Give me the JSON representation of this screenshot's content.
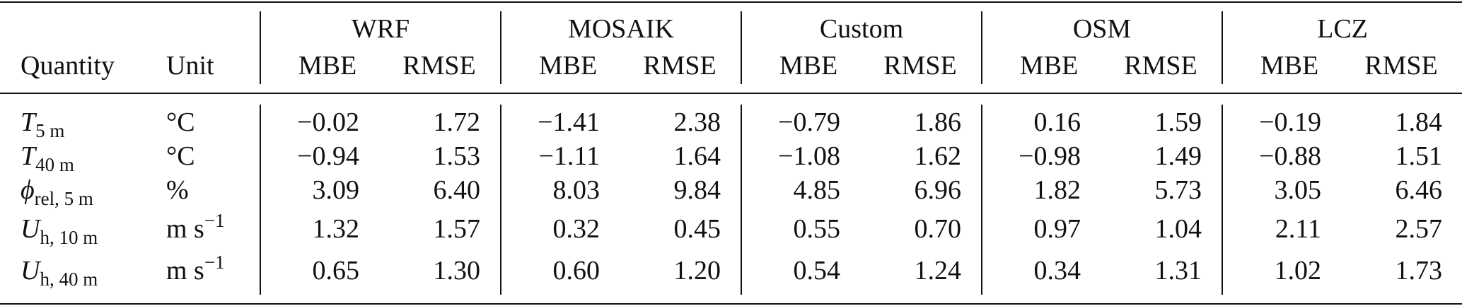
{
  "table": {
    "columns": [
      "Quantity",
      "Unit"
    ],
    "groups": [
      "WRF",
      "MOSAIK",
      "Custom",
      "OSM",
      "LCZ"
    ],
    "metrics": [
      "MBE",
      "RMSE"
    ],
    "rows": [
      {
        "quantity": {
          "symbol": "T",
          "subscript": "5 m"
        },
        "unit": {
          "text": "°C"
        },
        "values": [
          "−0.02",
          "1.72",
          "−1.41",
          "2.38",
          "−0.79",
          "1.86",
          "0.16",
          "1.59",
          "−0.19",
          "1.84"
        ]
      },
      {
        "quantity": {
          "symbol": "T",
          "subscript": "40 m"
        },
        "unit": {
          "text": "°C"
        },
        "values": [
          "−0.94",
          "1.53",
          "−1.11",
          "1.64",
          "−1.08",
          "1.62",
          "−0.98",
          "1.49",
          "−0.88",
          "1.51"
        ]
      },
      {
        "quantity": {
          "symbol": "ϕ",
          "subscript": "rel, 5 m"
        },
        "unit": {
          "text": "%"
        },
        "values": [
          "3.09",
          "6.40",
          "8.03",
          "9.84",
          "4.85",
          "6.96",
          "1.82",
          "5.73",
          "3.05",
          "6.46"
        ]
      },
      {
        "quantity": {
          "symbol": "U",
          "subscript": "h, 10 m"
        },
        "unit": {
          "text": "m s",
          "superscript": "−1"
        },
        "values": [
          "1.32",
          "1.57",
          "0.32",
          "0.45",
          "0.55",
          "0.70",
          "0.97",
          "1.04",
          "2.11",
          "2.57"
        ]
      },
      {
        "quantity": {
          "symbol": "U",
          "subscript": "h, 40 m"
        },
        "unit": {
          "text": "m s",
          "superscript": "−1"
        },
        "values": [
          "0.65",
          "1.30",
          "0.60",
          "1.20",
          "0.54",
          "1.24",
          "0.34",
          "1.31",
          "1.02",
          "1.73"
        ]
      }
    ]
  }
}
